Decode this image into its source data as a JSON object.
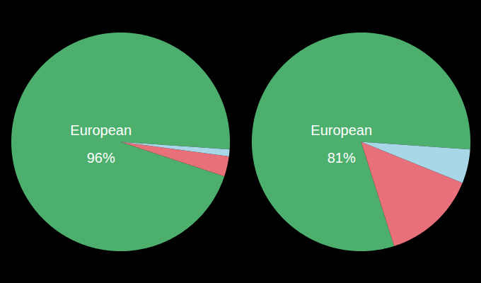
{
  "chart_data": [
    {
      "type": "pie",
      "categories": [
        "European",
        null,
        null
      ],
      "values": [
        96,
        3,
        1
      ],
      "value_labels": [
        "96%",
        null,
        null
      ],
      "colors": [
        "#4daf6e",
        "#e8707a",
        "#a8d8e8"
      ],
      "data_labels": true
    },
    {
      "type": "pie",
      "categories": [
        "European",
        null,
        null
      ],
      "values": [
        81,
        14,
        5
      ],
      "value_labels": [
        "81%",
        null,
        null
      ],
      "colors": [
        "#4daf6e",
        "#e8707a",
        "#a8d8e8"
      ],
      "data_labels": true
    }
  ]
}
